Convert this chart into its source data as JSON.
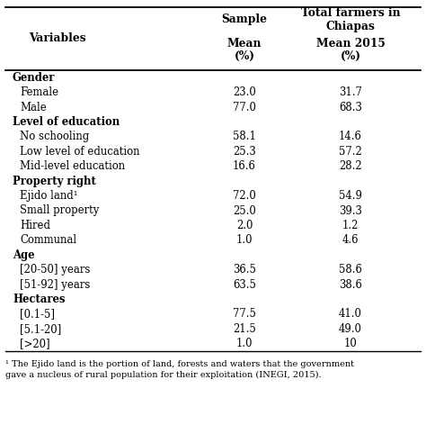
{
  "col_header_1": "Variables",
  "col_header_2": "Sample",
  "col_header_2_sub": "Mean\n(%)",
  "col_header_3": "Total farmers in\nChiapas",
  "col_header_3_sub": "Mean 2015\n(%)",
  "rows": [
    {
      "label": "Gender",
      "is_category": true,
      "val1": null,
      "val2": null
    },
    {
      "label": "Female",
      "is_category": false,
      "val1": "23.0",
      "val2": "31.7"
    },
    {
      "label": "Male",
      "is_category": false,
      "val1": "77.0",
      "val2": "68.3"
    },
    {
      "label": "Level of education",
      "is_category": true,
      "val1": null,
      "val2": null
    },
    {
      "label": "No schooling",
      "is_category": false,
      "val1": "58.1",
      "val2": "14.6"
    },
    {
      "label": "Low level of education",
      "is_category": false,
      "val1": "25.3",
      "val2": "57.2"
    },
    {
      "label": "Mid-level education",
      "is_category": false,
      "val1": "16.6",
      "val2": "28.2"
    },
    {
      "label": "Property right",
      "is_category": true,
      "val1": null,
      "val2": null
    },
    {
      "label": "Ejido land¹",
      "is_category": false,
      "val1": "72.0",
      "val2": "54.9"
    },
    {
      "label": "Small property",
      "is_category": false,
      "val1": "25.0",
      "val2": "39.3"
    },
    {
      "label": "Hired",
      "is_category": false,
      "val1": "2.0",
      "val2": "1.2"
    },
    {
      "label": "Communal",
      "is_category": false,
      "val1": "1.0",
      "val2": "4.6"
    },
    {
      "label": "Age",
      "is_category": true,
      "val1": null,
      "val2": null
    },
    {
      "label": "[20-50] years",
      "is_category": false,
      "val1": "36.5",
      "val2": "58.6"
    },
    {
      "label": "[51-92] years",
      "is_category": false,
      "val1": "63.5",
      "val2": "38.6"
    },
    {
      "label": "Hectares",
      "is_category": true,
      "val1": null,
      "val2": null
    },
    {
      "label": "[0.1-5]",
      "is_category": false,
      "val1": "77.5",
      "val2": "41.0"
    },
    {
      "label": "[5.1-20]",
      "is_category": false,
      "val1": "21.5",
      "val2": "49.0"
    },
    {
      "label": "[>20]",
      "is_category": false,
      "val1": "1.0",
      "val2": "10"
    }
  ],
  "footnote_line1": "¹ The Ejido land is the portion of land, forests and waters that the government",
  "footnote_line2": "gave a nucleus of rural population for their exploitation (INEGI, 2015).",
  "bg_color": "#ffffff"
}
